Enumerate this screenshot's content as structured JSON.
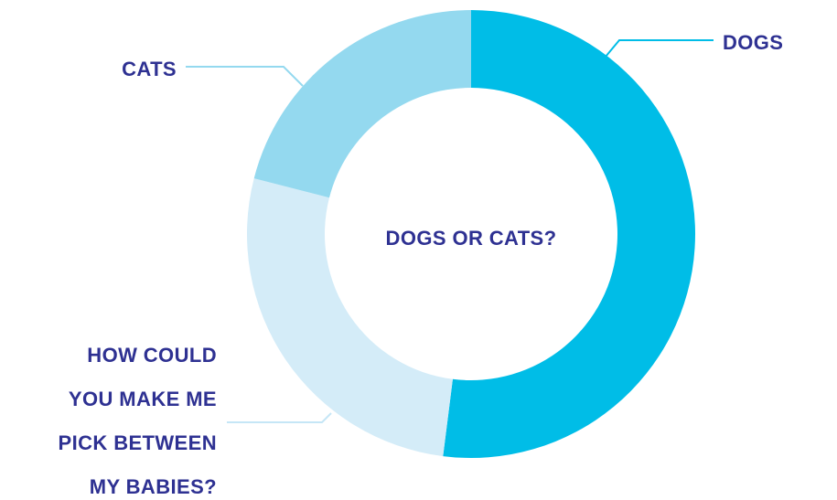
{
  "chart_data": {
    "type": "pie",
    "donut": true,
    "center_label": "DOGS OR CATS?",
    "legend": "none",
    "slices": [
      {
        "label": "DOGS",
        "label_lines": [
          "DOGS"
        ],
        "value": 52,
        "color": "#00bde7"
      },
      {
        "label": "HOW COULD YOU MAKE ME PICK BETWEEN MY BABIES?",
        "label_lines": [
          "HOW COULD",
          "YOU MAKE ME",
          "PICK BETWEEN",
          "MY BABIES?"
        ],
        "value": 27,
        "color": "#d4ecf8"
      },
      {
        "label": "CATS",
        "label_lines": [
          "CATS"
        ],
        "value": 21,
        "color": "#94d9ef"
      }
    ]
  }
}
